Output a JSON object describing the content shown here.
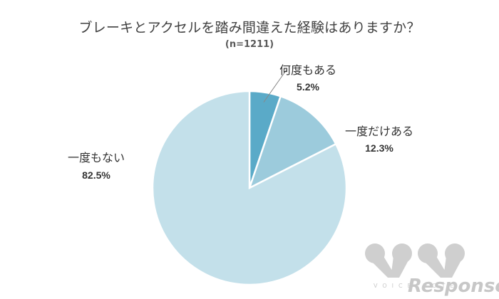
{
  "chart_data": {
    "type": "pie",
    "title": "ブレーキとアクセルを踏み間違えた経験はありますか？",
    "subtitle": "(n=1211)",
    "slices": [
      {
        "name": "何度もある",
        "value": 5.2,
        "label": "5.2%",
        "color": "#5aaac8"
      },
      {
        "name": "一度だけある",
        "value": 12.3,
        "label": "12.3%",
        "color": "#9ccbdc"
      },
      {
        "name": "一度もない",
        "value": 82.5,
        "label": "82.5%",
        "color": "#c3e0ea"
      }
    ],
    "legend": "none"
  },
  "watermark": {
    "brand": "Response.",
    "tag": "VOICE NOTE",
    "color": "#9a9a9a"
  }
}
